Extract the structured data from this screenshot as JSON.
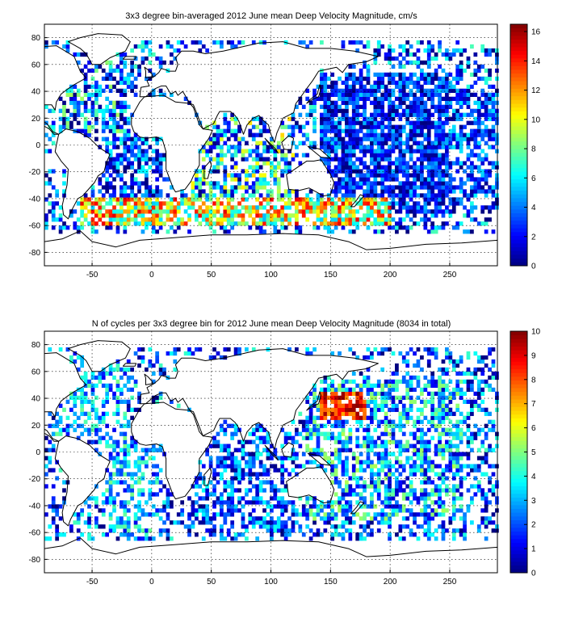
{
  "figure": {
    "panels": [
      {
        "title": "3x3 degree bin-averaged 2012 June mean Deep Velocity Magnitude, cm/s",
        "colorbar": {
          "min": 0,
          "max": 16.5,
          "ticks": [
            "0",
            "2",
            "4",
            "6",
            "8",
            "10",
            "12",
            "14",
            "16"
          ]
        }
      },
      {
        "title": "N of cycles per 3x3 degree bin for 2012 June mean Deep Velocity Magnitude (8034 in total)",
        "colorbar": {
          "min": 0,
          "max": 10,
          "ticks": [
            "0",
            "1",
            "2",
            "3",
            "4",
            "5",
            "6",
            "7",
            "8",
            "9",
            "10"
          ]
        }
      }
    ],
    "x_tick_labels": [
      "-50",
      "0",
      "50",
      "100",
      "150",
      "200",
      "250"
    ],
    "y_tick_labels": [
      "80",
      "60",
      "40",
      "20",
      "0",
      "-20",
      "-40",
      "-60",
      "-80"
    ]
  },
  "chart_data": [
    {
      "type": "heatmap",
      "title": "3x3 degree bin-averaged 2012 June mean Deep Velocity Magnitude, cm/s",
      "xlim": [
        -90,
        290
      ],
      "ylim": [
        -90,
        90
      ],
      "xticks": [
        -50,
        0,
        50,
        100,
        150,
        200,
        250
      ],
      "yticks": [
        -80,
        -60,
        -40,
        -20,
        0,
        20,
        40,
        60,
        80
      ],
      "bin_size_deg": 3,
      "colorbar": {
        "min": 0,
        "max": 16.5,
        "ticks": [
          0,
          2,
          4,
          6,
          8,
          10,
          12,
          14,
          16
        ],
        "colormap": "jet"
      },
      "grid": true,
      "regions": [
        {
          "lon": [
            -80,
            -20
          ],
          "lat": [
            10,
            70
          ],
          "level": 4,
          "spread": 5,
          "density": 0.6
        },
        {
          "lon": [
            -40,
            10
          ],
          "lat": [
            -60,
            10
          ],
          "level": 3,
          "spread": 4,
          "density": 0.65
        },
        {
          "lon": [
            140,
            260
          ],
          "lat": [
            -50,
            55
          ],
          "level": 2.5,
          "spread": 3,
          "density": 0.8
        },
        {
          "lon": [
            30,
            120
          ],
          "lat": [
            -60,
            20
          ],
          "level": 5,
          "spread": 6,
          "density": 0.6
        },
        {
          "lon": [
            -60,
            200
          ],
          "lat": [
            -60,
            -40
          ],
          "level": 10,
          "spread": 5,
          "density": 0.7
        },
        {
          "lon": [
            250,
            290
          ],
          "lat": [
            -40,
            40
          ],
          "level": 3,
          "spread": 3,
          "density": 0.6
        }
      ]
    },
    {
      "type": "heatmap",
      "title": "N of cycles per 3x3 degree bin for 2012 June mean Deep Velocity Magnitude (8034 in total)",
      "xlim": [
        -90,
        290
      ],
      "ylim": [
        -90,
        90
      ],
      "xticks": [
        -50,
        0,
        50,
        100,
        150,
        200,
        250
      ],
      "yticks": [
        -80,
        -60,
        -40,
        -20,
        0,
        20,
        40,
        60,
        80
      ],
      "bin_size_deg": 3,
      "total_cycles": 8034,
      "colorbar": {
        "min": 0,
        "max": 10,
        "ticks": [
          0,
          1,
          2,
          3,
          4,
          5,
          6,
          7,
          8,
          9,
          10
        ],
        "colormap": "jet"
      },
      "grid": true,
      "regions": [
        {
          "lon": [
            -80,
            -20
          ],
          "lat": [
            10,
            70
          ],
          "level": 3,
          "spread": 2,
          "density": 0.5
        },
        {
          "lon": [
            -40,
            10
          ],
          "lat": [
            -60,
            10
          ],
          "level": 3,
          "spread": 2,
          "density": 0.5
        },
        {
          "lon": [
            130,
            260
          ],
          "lat": [
            -50,
            55
          ],
          "level": 3,
          "spread": 2.5,
          "density": 0.6
        },
        {
          "lon": [
            140,
            180
          ],
          "lat": [
            25,
            45
          ],
          "level": 8.5,
          "spread": 1.5,
          "density": 0.8
        },
        {
          "lon": [
            30,
            120
          ],
          "lat": [
            -60,
            20
          ],
          "level": 2,
          "spread": 2,
          "density": 0.55
        }
      ]
    }
  ]
}
